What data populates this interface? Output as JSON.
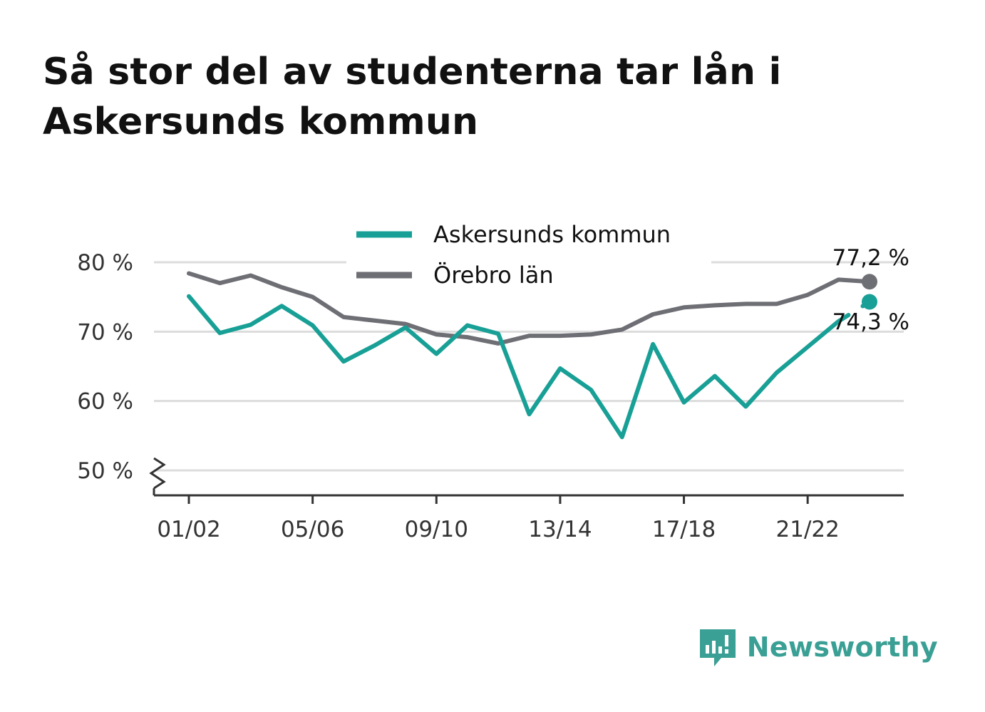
{
  "title": "Så stor del av studenterna tar lån i Askersunds kommun",
  "brand": {
    "name": "Newsworthy",
    "icon": "newsworthy-logo-icon",
    "color": "#3a9f94"
  },
  "chart_data": {
    "type": "line",
    "title": "Så stor del av studenterna tar lån i Askersunds kommun",
    "xlabel": "",
    "ylabel": "",
    "x": [
      "01/02",
      "02/03",
      "03/04",
      "04/05",
      "05/06",
      "06/07",
      "07/08",
      "08/09",
      "09/10",
      "10/11",
      "11/12",
      "12/13",
      "13/14",
      "14/15",
      "15/16",
      "16/17",
      "17/18",
      "18/19",
      "19/20",
      "20/21",
      "21/22",
      "22/23",
      "23/24"
    ],
    "x_tick_labels": [
      "01/02",
      "05/06",
      "09/10",
      "13/14",
      "17/18",
      "21/22"
    ],
    "y_ticks": [
      50,
      60,
      70,
      80
    ],
    "y_tick_labels": [
      "50 %",
      "60 %",
      "70 %",
      "80 %"
    ],
    "ylim": [
      46.5,
      81
    ],
    "axis_break": true,
    "grid": true,
    "legend_position": "top",
    "series": [
      {
        "name": "Askersunds kommun",
        "color": "#18a096",
        "values": [
          75.1,
          69.8,
          71.0,
          73.7,
          70.9,
          65.7,
          68.0,
          70.6,
          66.8,
          70.9,
          69.7,
          58.1,
          64.7,
          61.6,
          54.8,
          68.2,
          59.8,
          63.6,
          59.2,
          64.1,
          67.8,
          71.5,
          74.3
        ],
        "gap_before_last": true,
        "end_label": "74,3 %"
      },
      {
        "name": "Örebro län",
        "color": "#6e6e75",
        "values": [
          78.4,
          77.0,
          78.1,
          76.4,
          75.0,
          72.1,
          71.6,
          71.1,
          69.6,
          69.2,
          68.3,
          69.4,
          69.4,
          69.6,
          70.3,
          72.5,
          73.5,
          73.8,
          74.0,
          74.0,
          75.3,
          77.5,
          77.2
        ],
        "end_label": "77,2 %"
      }
    ]
  }
}
